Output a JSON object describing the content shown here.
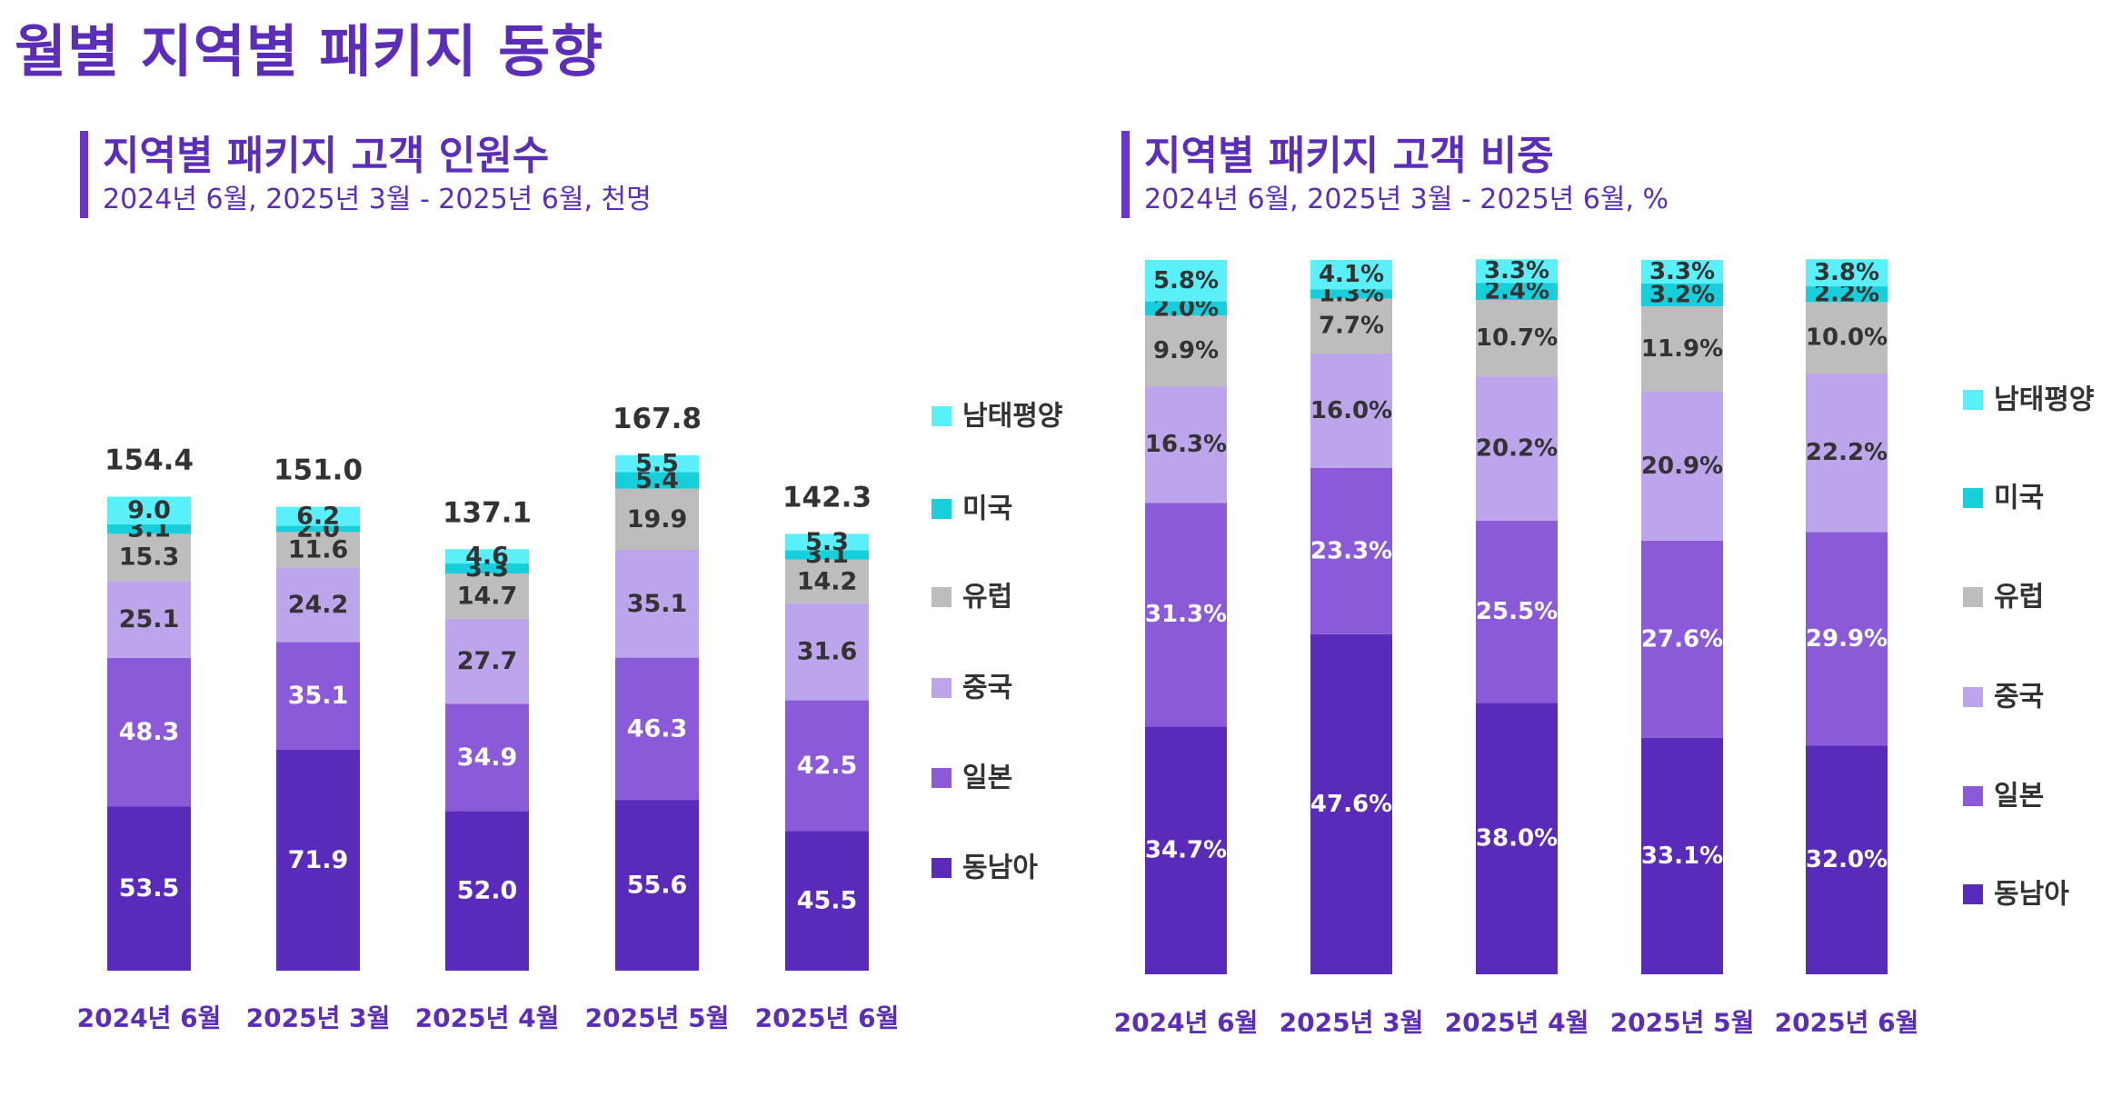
{
  "page_title": "월별 지역별 패키지 동향",
  "colors": {
    "동남아": "#5A2ABA",
    "일본": "#8A5AD8",
    "중국": "#BCA5EB",
    "유럽": "#BDBDBD",
    "미국": "#16CFDB",
    "남태평양": "#5AF0FA",
    "text_dark": "#333333",
    "accent": "#5B2DB8"
  },
  "chart_data": [
    {
      "type": "bar",
      "stacked": true,
      "title": "지역별 패키지 고객 인원수",
      "subtitle": "2024년 6월, 2025년 3월 - 2025년 6월, 천명",
      "categories": [
        "2024년 6월",
        "2025년 3월",
        "2025년 4월",
        "2025년 5월",
        "2025년 6월"
      ],
      "series": [
        {
          "name": "동남아",
          "values": [
            53.5,
            71.9,
            52.0,
            55.6,
            45.5
          ],
          "labels": [
            "53.5",
            "71.9",
            "52.0",
            "55.6",
            "45.5"
          ]
        },
        {
          "name": "일본",
          "values": [
            48.3,
            35.1,
            34.9,
            46.3,
            42.5
          ],
          "labels": [
            "48.3",
            "35.1",
            "34.9",
            "46.3",
            "42.5"
          ]
        },
        {
          "name": "중국",
          "values": [
            25.1,
            24.2,
            27.7,
            35.1,
            31.6
          ],
          "labels": [
            "25.1",
            "24.2",
            "27.7",
            "35.1",
            "31.6"
          ]
        },
        {
          "name": "유럽",
          "values": [
            15.3,
            11.6,
            14.7,
            19.9,
            14.2
          ],
          "labels": [
            "15.3",
            "11.6",
            "14.7",
            "19.9",
            "14.2"
          ]
        },
        {
          "name": "미국",
          "values": [
            3.1,
            2.0,
            3.3,
            5.4,
            3.1
          ],
          "labels": [
            "3.1",
            "2.0",
            "3.3",
            "5.4",
            "3.1"
          ]
        },
        {
          "name": "남태평양",
          "values": [
            9.0,
            6.2,
            4.6,
            5.5,
            5.3
          ],
          "labels": [
            "9.0",
            "6.2",
            "4.6",
            "5.5",
            "5.3"
          ]
        }
      ],
      "totals": [
        "154.4",
        "151.0",
        "137.1",
        "167.8",
        "142.3"
      ],
      "legend": [
        "남태평양",
        "미국",
        "유럽",
        "중국",
        "일본",
        "동남아"
      ],
      "legend_position": "right"
    },
    {
      "type": "bar",
      "stacked": true,
      "percent": true,
      "title": "지역별 패키지 고객 비중",
      "subtitle": "2024년 6월, 2025년 3월 - 2025년 6월, %",
      "categories": [
        "2024년 6월",
        "2025년 3월",
        "2025년 4월",
        "2025년 5월",
        "2025년 6월"
      ],
      "series": [
        {
          "name": "동남아",
          "values": [
            34.7,
            47.6,
            38.0,
            33.1,
            32.0
          ],
          "labels": [
            "34.7%",
            "47.6%",
            "38.0%",
            "33.1%",
            "32.0%"
          ]
        },
        {
          "name": "일본",
          "values": [
            31.3,
            23.3,
            25.5,
            27.6,
            29.9
          ],
          "labels": [
            "31.3%",
            "23.3%",
            "25.5%",
            "27.6%",
            "29.9%"
          ]
        },
        {
          "name": "중국",
          "values": [
            16.3,
            16.0,
            20.2,
            20.9,
            22.2
          ],
          "labels": [
            "16.3%",
            "16.0%",
            "20.2%",
            "20.9%",
            "22.2%"
          ]
        },
        {
          "name": "유럽",
          "values": [
            9.9,
            7.7,
            10.7,
            11.9,
            10.0
          ],
          "labels": [
            "9.9%",
            "7.7%",
            "10.7%",
            "11.9%",
            "10.0%"
          ]
        },
        {
          "name": "미국",
          "values": [
            2.0,
            1.3,
            2.4,
            3.2,
            2.2
          ],
          "labels": [
            "2.0%",
            "1.3%",
            "2.4%",
            "3.2%",
            "2.2%"
          ]
        },
        {
          "name": "남태평양",
          "values": [
            5.8,
            4.1,
            3.3,
            3.3,
            3.8
          ],
          "labels": [
            "5.8%",
            "4.1%",
            "3.3%",
            "3.3%",
            "3.8%"
          ]
        }
      ],
      "legend": [
        "남태평양",
        "미국",
        "유럽",
        "중국",
        "일본",
        "동남아"
      ],
      "legend_position": "right"
    }
  ]
}
